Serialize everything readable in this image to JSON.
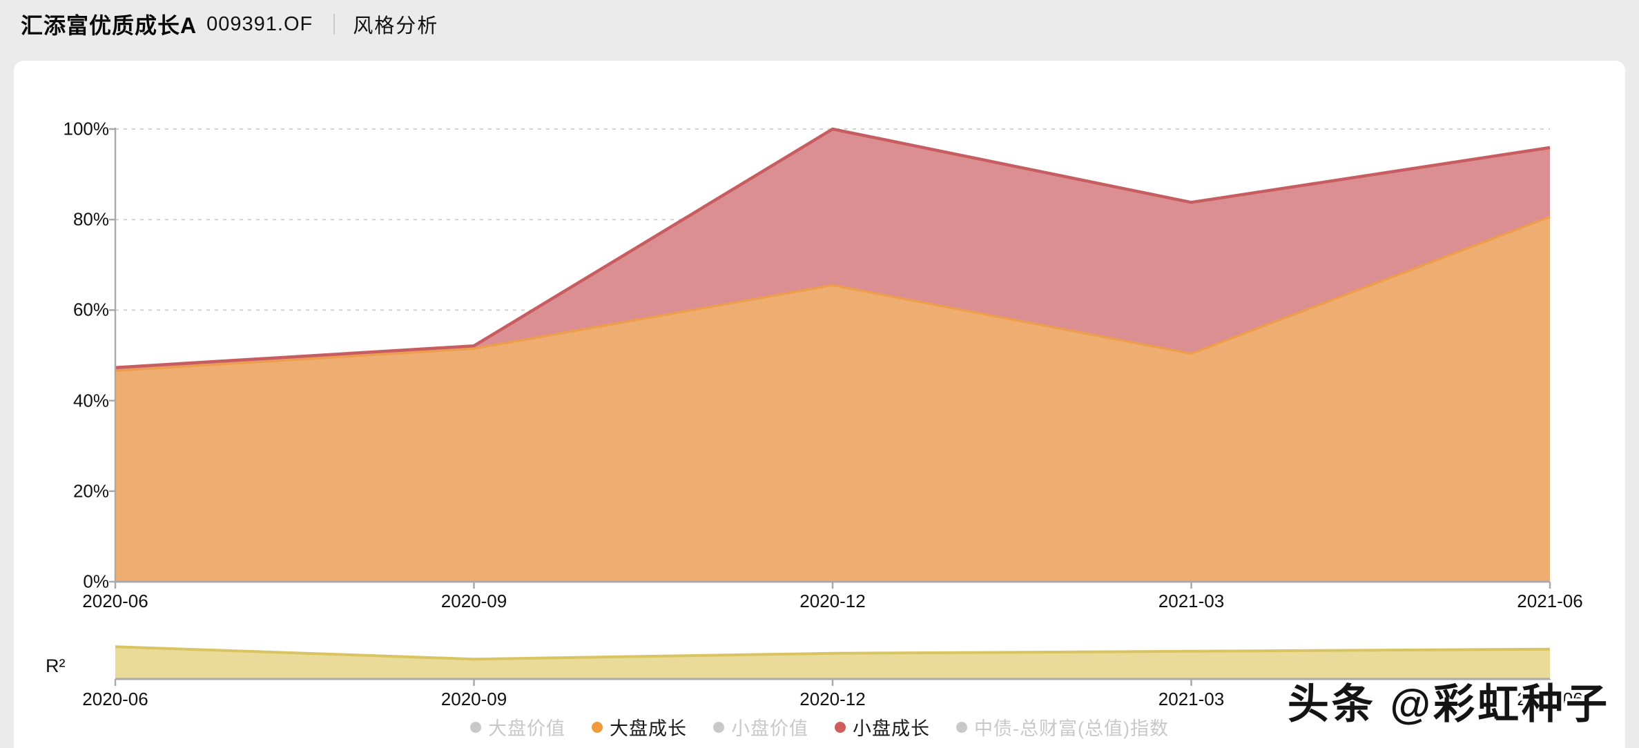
{
  "header": {
    "fund_name": "汇添富优质成长A",
    "fund_code": "009391.OF",
    "page_title": "风格分析"
  },
  "chart_data": [
    {
      "id": "style-stacked-area",
      "type": "area",
      "stacked": true,
      "x": [
        "2020-06",
        "2020-09",
        "2020-12",
        "2021-03",
        "2021-06"
      ],
      "y_ticks": [
        "0%",
        "20%",
        "40%",
        "60%",
        "80%",
        "100%"
      ],
      "ylim": [
        0,
        100
      ],
      "grid": "horizontal-dashed",
      "series": [
        {
          "name": "大盘成长",
          "values": [
            46.6,
            51.5,
            65.5,
            50.4,
            80.6
          ],
          "fill": "#EFAE71",
          "line": "#EE9D4F"
        },
        {
          "name": "小盘成长",
          "values": [
            0.7,
            0.6,
            34.5,
            33.4,
            15.3
          ],
          "fill": "#DC8F92",
          "line": "#C75D60"
        }
      ],
      "legend": {
        "position": "bottom-center",
        "items": [
          {
            "label": "大盘价值",
            "color": "#C8C8C8",
            "active": false
          },
          {
            "label": "大盘成长",
            "color": "#F09A3C",
            "active": true
          },
          {
            "label": "小盘价值",
            "color": "#C8C8C8",
            "active": false
          },
          {
            "label": "小盘成长",
            "color": "#D05C5C",
            "active": true
          },
          {
            "label": "中债-总财富(总值)指数",
            "color": "#C8C8C8",
            "active": false
          }
        ]
      }
    },
    {
      "id": "r2-area",
      "type": "area",
      "label": "R²",
      "x": [
        "2020-06",
        "2020-09",
        "2020-12",
        "2021-03",
        "2021-06"
      ],
      "values": [
        0.78,
        0.48,
        0.62,
        0.67,
        0.72
      ],
      "ylim": [
        0,
        1
      ],
      "fill": "#EADB9B",
      "line": "#D9C462"
    }
  ],
  "watermark": {
    "text": "头条 @彩虹种子"
  },
  "colors": {
    "axis": "#A9A9A9",
    "grid": "#D2D2D2",
    "text": "#1A1A1A",
    "muted": "#C8C8C8",
    "card_bg": "#FFFFFF",
    "page_bg": "#EBEBEB"
  }
}
